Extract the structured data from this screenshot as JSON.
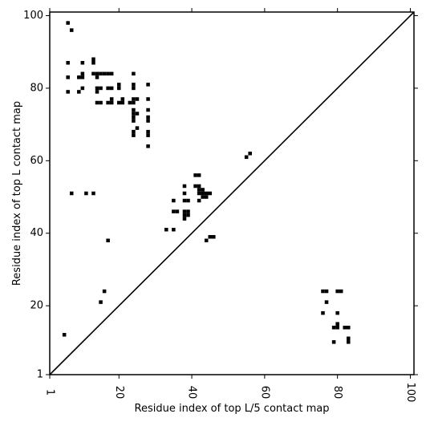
{
  "chart_data": {
    "type": "heatmap",
    "xlabel": "Residue index of top L/5 contact map",
    "ylabel": "Residue index of top L contact map",
    "xlim": [
      1,
      101
    ],
    "ylim": [
      1,
      101
    ],
    "x_ticks": [
      1,
      20,
      40,
      60,
      80,
      100
    ],
    "y_ticks": [
      1,
      20,
      40,
      60,
      80,
      100
    ],
    "x_tick_labels": [
      "1",
      "20",
      "40",
      "60",
      "80",
      "100"
    ],
    "y_tick_labels": [
      "1",
      "20",
      "40",
      "60",
      "80",
      "100"
    ],
    "diagonal": true,
    "cell_color": "#000000",
    "lower_triangle_contacts": [
      [
        56,
        62
      ],
      [
        55,
        61
      ],
      [
        76,
        24
      ],
      [
        77,
        24
      ],
      [
        80,
        24
      ],
      [
        81,
        24
      ],
      [
        77,
        21
      ],
      [
        76,
        18
      ],
      [
        80,
        18
      ],
      [
        79,
        14
      ],
      [
        80,
        14
      ],
      [
        80,
        15
      ],
      [
        82,
        14
      ],
      [
        83,
        14
      ],
      [
        83,
        11
      ],
      [
        83,
        10
      ],
      [
        79,
        10
      ]
    ],
    "upper_triangle_contacts": [
      [
        6,
        98
      ],
      [
        7,
        96
      ],
      [
        6,
        87
      ],
      [
        10,
        87
      ],
      [
        13,
        88
      ],
      [
        13,
        87
      ],
      [
        6,
        83
      ],
      [
        9,
        83
      ],
      [
        10,
        83
      ],
      [
        10,
        84
      ],
      [
        13,
        84
      ],
      [
        14,
        84
      ],
      [
        15,
        84
      ],
      [
        16,
        84
      ],
      [
        17,
        84
      ],
      [
        18,
        84
      ],
      [
        24,
        84
      ],
      [
        14,
        83
      ],
      [
        20,
        81
      ],
      [
        24,
        81
      ],
      [
        28,
        81
      ],
      [
        10,
        80
      ],
      [
        14,
        80
      ],
      [
        15,
        80
      ],
      [
        17,
        80
      ],
      [
        18,
        80
      ],
      [
        20,
        80
      ],
      [
        24,
        80
      ],
      [
        6,
        79
      ],
      [
        9,
        79
      ],
      [
        14,
        79
      ],
      [
        14,
        76
      ],
      [
        15,
        76
      ],
      [
        17,
        76
      ],
      [
        18,
        76
      ],
      [
        20,
        76
      ],
      [
        21,
        76
      ],
      [
        23,
        76
      ],
      [
        24,
        76
      ],
      [
        18,
        77
      ],
      [
        21,
        77
      ],
      [
        24,
        77
      ],
      [
        25,
        77
      ],
      [
        28,
        77
      ],
      [
        24,
        74
      ],
      [
        28,
        74
      ],
      [
        24,
        73
      ],
      [
        25,
        73
      ],
      [
        24,
        72
      ],
      [
        28,
        72
      ],
      [
        24,
        71
      ],
      [
        28,
        71
      ],
      [
        25,
        69
      ],
      [
        24,
        68
      ],
      [
        28,
        68
      ],
      [
        24,
        67
      ],
      [
        28,
        67
      ],
      [
        28,
        64
      ],
      [
        7,
        51
      ],
      [
        11,
        51
      ],
      [
        13,
        51
      ],
      [
        17,
        38
      ],
      [
        15,
        21
      ],
      [
        16,
        24
      ],
      [
        5,
        12
      ],
      [
        33,
        41
      ],
      [
        35,
        41
      ],
      [
        35,
        46
      ],
      [
        36,
        46
      ],
      [
        35,
        49
      ],
      [
        38,
        53
      ],
      [
        38,
        51
      ],
      [
        38,
        49
      ],
      [
        39,
        49
      ],
      [
        38,
        46
      ],
      [
        39,
        46
      ],
      [
        38,
        45
      ],
      [
        39,
        45
      ],
      [
        38,
        44
      ],
      [
        41,
        56
      ],
      [
        42,
        56
      ],
      [
        41,
        53
      ],
      [
        42,
        53
      ],
      [
        42,
        52
      ],
      [
        43,
        52
      ],
      [
        42,
        51
      ],
      [
        43,
        51
      ],
      [
        44,
        51
      ],
      [
        45,
        51
      ],
      [
        43,
        50
      ],
      [
        44,
        50
      ],
      [
        42,
        49
      ],
      [
        45,
        39
      ],
      [
        46,
        39
      ],
      [
        44,
        38
      ]
    ]
  }
}
